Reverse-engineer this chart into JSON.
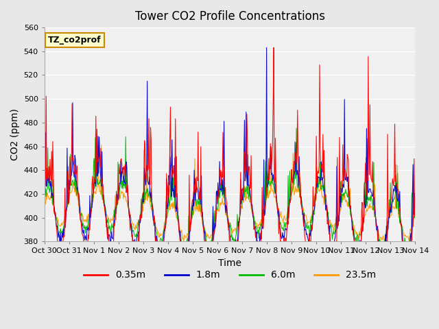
{
  "title": "Tower CO2 Profile Concentrations",
  "xlabel": "Time",
  "ylabel": "CO2 (ppm)",
  "ylim": [
    380,
    560
  ],
  "yticks": [
    380,
    400,
    420,
    440,
    460,
    480,
    500,
    520,
    540,
    560
  ],
  "xtick_labels": [
    "Oct 30",
    "Oct 31",
    "Nov 1",
    "Nov 2",
    "Nov 3",
    "Nov 4",
    "Nov 5",
    "Nov 6",
    "Nov 7",
    "Nov 8",
    "Nov 9",
    "Nov 10",
    "Nov 11",
    "Nov 12",
    "Nov 13",
    "Nov 14"
  ],
  "series_colors": [
    "#ff0000",
    "#0000cc",
    "#00bb00",
    "#ff9900"
  ],
  "series_labels": [
    "0.35m",
    "1.8m",
    "6.0m",
    "23.5m"
  ],
  "legend_label": "TZ_co2prof",
  "background_color": "#e8e8e8",
  "plot_bg_color": "#f0f0f0",
  "grid_color": "#ffffff",
  "n_points": 672,
  "days": 15,
  "seed": 42
}
